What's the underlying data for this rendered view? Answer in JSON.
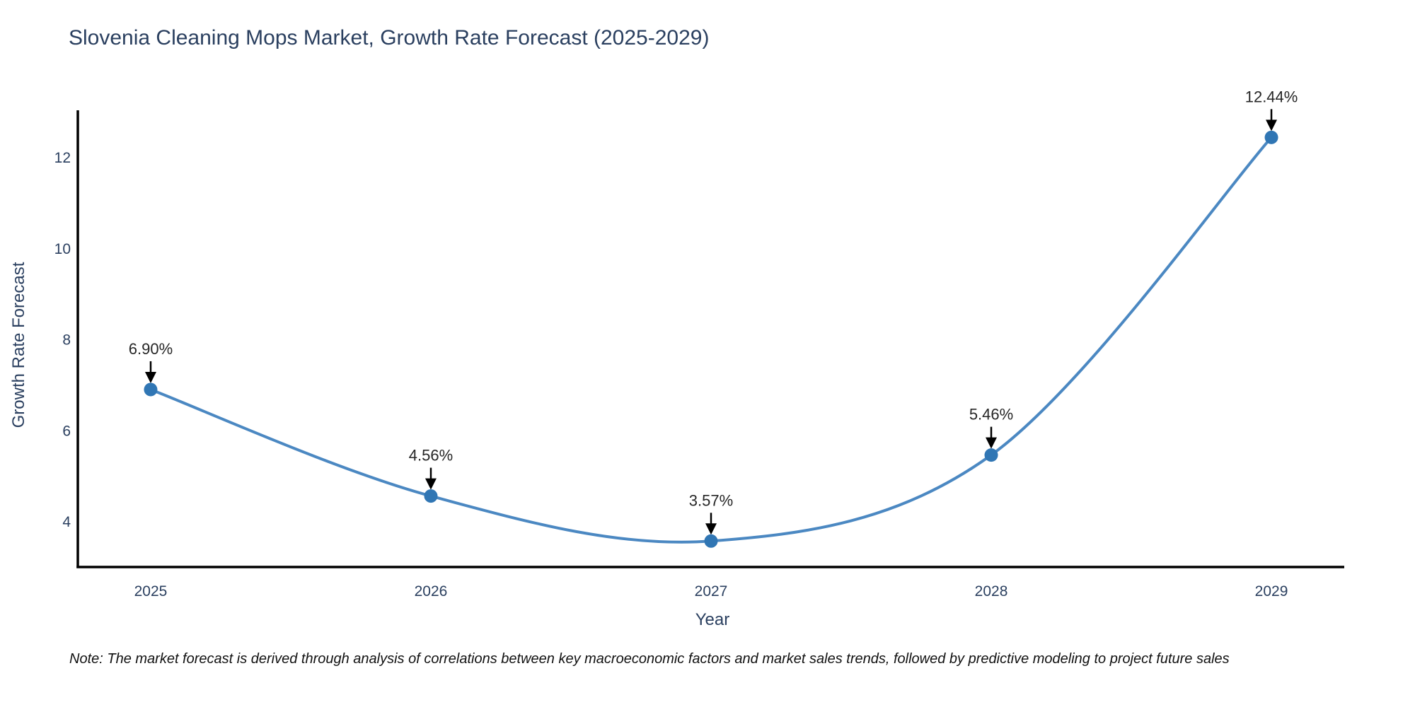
{
  "chart_data": {
    "type": "line",
    "title": "Slovenia Cleaning Mops Market, Growth Rate Forecast (2025-2029)",
    "xlabel": "Year",
    "ylabel": "Growth Rate Forecast",
    "categories": [
      2025,
      2026,
      2027,
      2028,
      2029
    ],
    "values": [
      6.9,
      4.56,
      3.57,
      5.46,
      12.44
    ],
    "point_labels": [
      "6.90%",
      "4.56%",
      "3.57%",
      "5.46%",
      "12.44%"
    ],
    "y_ticks": [
      4,
      6,
      8,
      10,
      12
    ],
    "xlim": [
      2024.74,
      2029.26
    ],
    "ylim": [
      3.0,
      13.02
    ],
    "grid": false,
    "legend_position": "none",
    "line_shape": "spline",
    "colors": {
      "line": "#4b88c2",
      "marker": "#3076b4",
      "arrow": "#000000",
      "axis": "#000000",
      "tick_text": "#2a3f5f",
      "annotation_text": "#262626",
      "title_text": "#2a3f5f"
    }
  },
  "note": {
    "text": "Note: The market forecast is derived through analysis of correlations between key macroeconomic factors and market sales trends, followed by predictive modeling to project future sales"
  }
}
